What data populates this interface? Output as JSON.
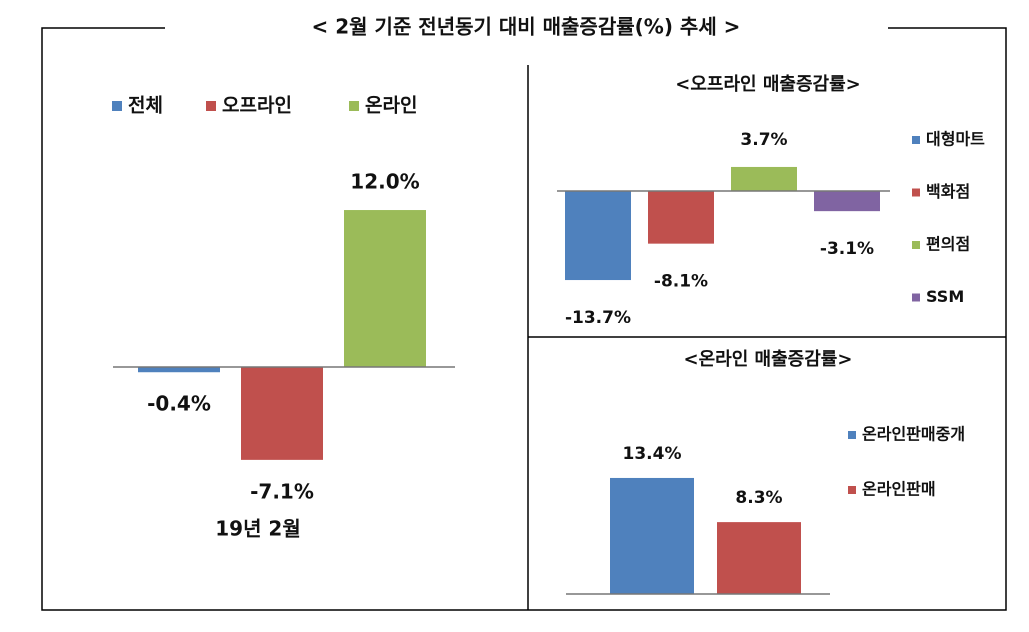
{
  "title": "< 2월 기준 전년동기 대비 매출증감률(%) 추세 >",
  "chart_data": [
    {
      "type": "bar",
      "categories": [
        "19년 2월"
      ],
      "series": [
        {
          "name": "전체",
          "color": "#4f81bd",
          "values": [
            -0.4
          ],
          "value_labels": [
            "-0.4%"
          ]
        },
        {
          "name": "오프라인",
          "color": "#c0504d",
          "values": [
            -7.1
          ],
          "value_labels": [
            "-7.1%"
          ]
        },
        {
          "name": "온라인",
          "color": "#9bbb59",
          "values": [
            12.0
          ],
          "value_labels": [
            "12.0%"
          ]
        }
      ]
    },
    {
      "type": "bar",
      "title": "<오프라인 매출증감률>",
      "series": [
        {
          "name": "대형마트",
          "color": "#4f81bd",
          "values": [
            -13.7
          ],
          "value_labels": [
            "-13.7%"
          ]
        },
        {
          "name": "백화점",
          "color": "#c0504d",
          "values": [
            -8.1
          ],
          "value_labels": [
            "-8.1%"
          ]
        },
        {
          "name": "편의점",
          "color": "#9bbb59",
          "values": [
            3.7
          ],
          "value_labels": [
            "3.7%"
          ]
        },
        {
          "name": "SSM",
          "color": "#8064a2",
          "values": [
            -3.1
          ],
          "value_labels": [
            "-3.1%"
          ]
        }
      ]
    },
    {
      "type": "bar",
      "title": "<온라인 매출증감률>",
      "series": [
        {
          "name": "온라인판매중개",
          "color": "#4f81bd",
          "values": [
            13.4
          ],
          "value_labels": [
            "13.4%"
          ]
        },
        {
          "name": "온라인판매",
          "color": "#c0504d",
          "values": [
            8.3
          ],
          "value_labels": [
            "8.3%"
          ]
        }
      ]
    }
  ]
}
